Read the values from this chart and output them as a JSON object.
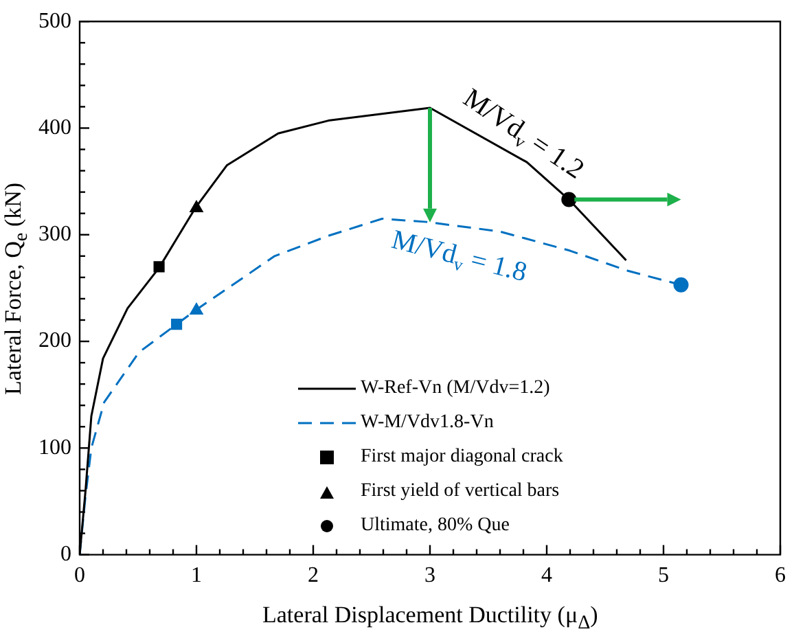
{
  "chart_data": {
    "type": "line",
    "xlabel": "Lateral Displacement Ductility (μ$_{Δ}$)",
    "ylabel": "Lateral Force, Q$_{e}$ (kN)",
    "xlim": [
      0,
      6
    ],
    "ylim": [
      0,
      500
    ],
    "xticks": [
      0,
      {
        "value": 0.2,
        "label": null
      },
      {
        "value": 0.4,
        "label": null
      },
      {
        "value": 0.6,
        "label": null
      },
      {
        "value": 0.8,
        "label": null
      },
      1,
      {
        "value": 1.2,
        "label": null
      },
      {
        "value": 1.4,
        "label": null
      },
      {
        "value": 1.6,
        "label": null
      },
      {
        "value": 1.8,
        "label": null
      },
      2,
      {
        "value": 2.2,
        "label": null
      },
      {
        "value": 2.4,
        "label": null
      },
      {
        "value": 2.6,
        "label": null
      },
      {
        "value": 2.8,
        "label": null
      },
      3,
      {
        "value": 3.2,
        "label": null
      },
      {
        "value": 3.4,
        "label": null
      },
      {
        "value": 3.6,
        "label": null
      },
      {
        "value": 3.8,
        "label": null
      },
      4,
      {
        "value": 4.2,
        "label": null
      },
      {
        "value": 4.4,
        "label": null
      },
      {
        "value": 4.6,
        "label": null
      },
      {
        "value": 4.8,
        "label": null
      },
      5,
      {
        "value": 5.2,
        "label": null
      },
      {
        "value": 5.4,
        "label": null
      },
      {
        "value": 5.6,
        "label": null
      },
      {
        "value": 5.8,
        "label": null
      },
      6
    ],
    "yticks": [
      0,
      {
        "value": 20,
        "label": null
      },
      {
        "value": 40,
        "label": null
      },
      {
        "value": 60,
        "label": null
      },
      {
        "value": 80,
        "label": null
      },
      100,
      {
        "value": 120,
        "label": null
      },
      {
        "value": 140,
        "label": null
      },
      {
        "value": 160,
        "label": null
      },
      {
        "value": 180,
        "label": null
      },
      200,
      {
        "value": 220,
        "label": null
      },
      {
        "value": 240,
        "label": null
      },
      {
        "value": 260,
        "label": null
      },
      {
        "value": 280,
        "label": null
      },
      300,
      {
        "value": 320,
        "label": null
      },
      {
        "value": 340,
        "label": null
      },
      {
        "value": 360,
        "label": null
      },
      {
        "value": 380,
        "label": null
      },
      400,
      {
        "value": 420,
        "label": null
      },
      {
        "value": 440,
        "label": null
      },
      {
        "value": 460,
        "label": null
      },
      {
        "value": 480,
        "label": null
      },
      500
    ],
    "grid": false,
    "legend": "bottom",
    "series": [
      {
        "name": "W-Ref-Vn (M/Vdv=1.2)",
        "type": "line",
        "line_style": "solid",
        "color": "#000000",
        "x": [
          0,
          0.05,
          0.1,
          0.2,
          0.41,
          0.68,
          0.99,
          1.26,
          1.7,
          2.13,
          3.0,
          3.83,
          4.19,
          4.68
        ],
        "values": [
          0,
          60,
          130,
          184,
          231,
          269,
          325,
          365,
          395,
          407,
          419,
          368,
          333,
          276
        ]
      },
      {
        "name": "W-M/Vdv1.8-Vn",
        "type": "line",
        "line_style": "dashed",
        "color": "#0070c0",
        "x": [
          0,
          0.05,
          0.1,
          0.21,
          0.51,
          0.83,
          0.99,
          1.67,
          2.13,
          2.59,
          2.97,
          3.6,
          4.2,
          4.7,
          5.15
        ],
        "values": [
          0,
          55,
          100,
          143,
          190,
          216,
          229,
          280,
          299,
          315,
          312,
          303,
          285,
          266,
          253
        ]
      },
      {
        "name": "First major diagonal crack",
        "type": "scatter",
        "marker": "square",
        "color": "#000000",
        "colors": [
          "#000000",
          "#0070c0"
        ],
        "x": [
          0.68,
          0.83
        ],
        "values": [
          270,
          216
        ]
      },
      {
        "name": "First yield of vertical bars",
        "type": "scatter",
        "marker": "triangle",
        "color": "#000000",
        "colors": [
          "#000000",
          "#0070c0"
        ],
        "x": [
          1.0,
          1.0
        ],
        "values": [
          325,
          229
        ]
      },
      {
        "name": "Ultimate, 80% Que",
        "type": "scatter",
        "marker": "circle",
        "color": "#000000",
        "colors": [
          "#000000",
          "#0070c0"
        ],
        "x": [
          4.19,
          5.15
        ],
        "values": [
          333,
          253
        ]
      }
    ],
    "annotations": [
      "M/Vd$_{v}$ = 1.2",
      {
        "text": "M/Vd$_{v}$ = 1.8",
        "x": 3,
        "y": 312
      }
    ]
  }
}
